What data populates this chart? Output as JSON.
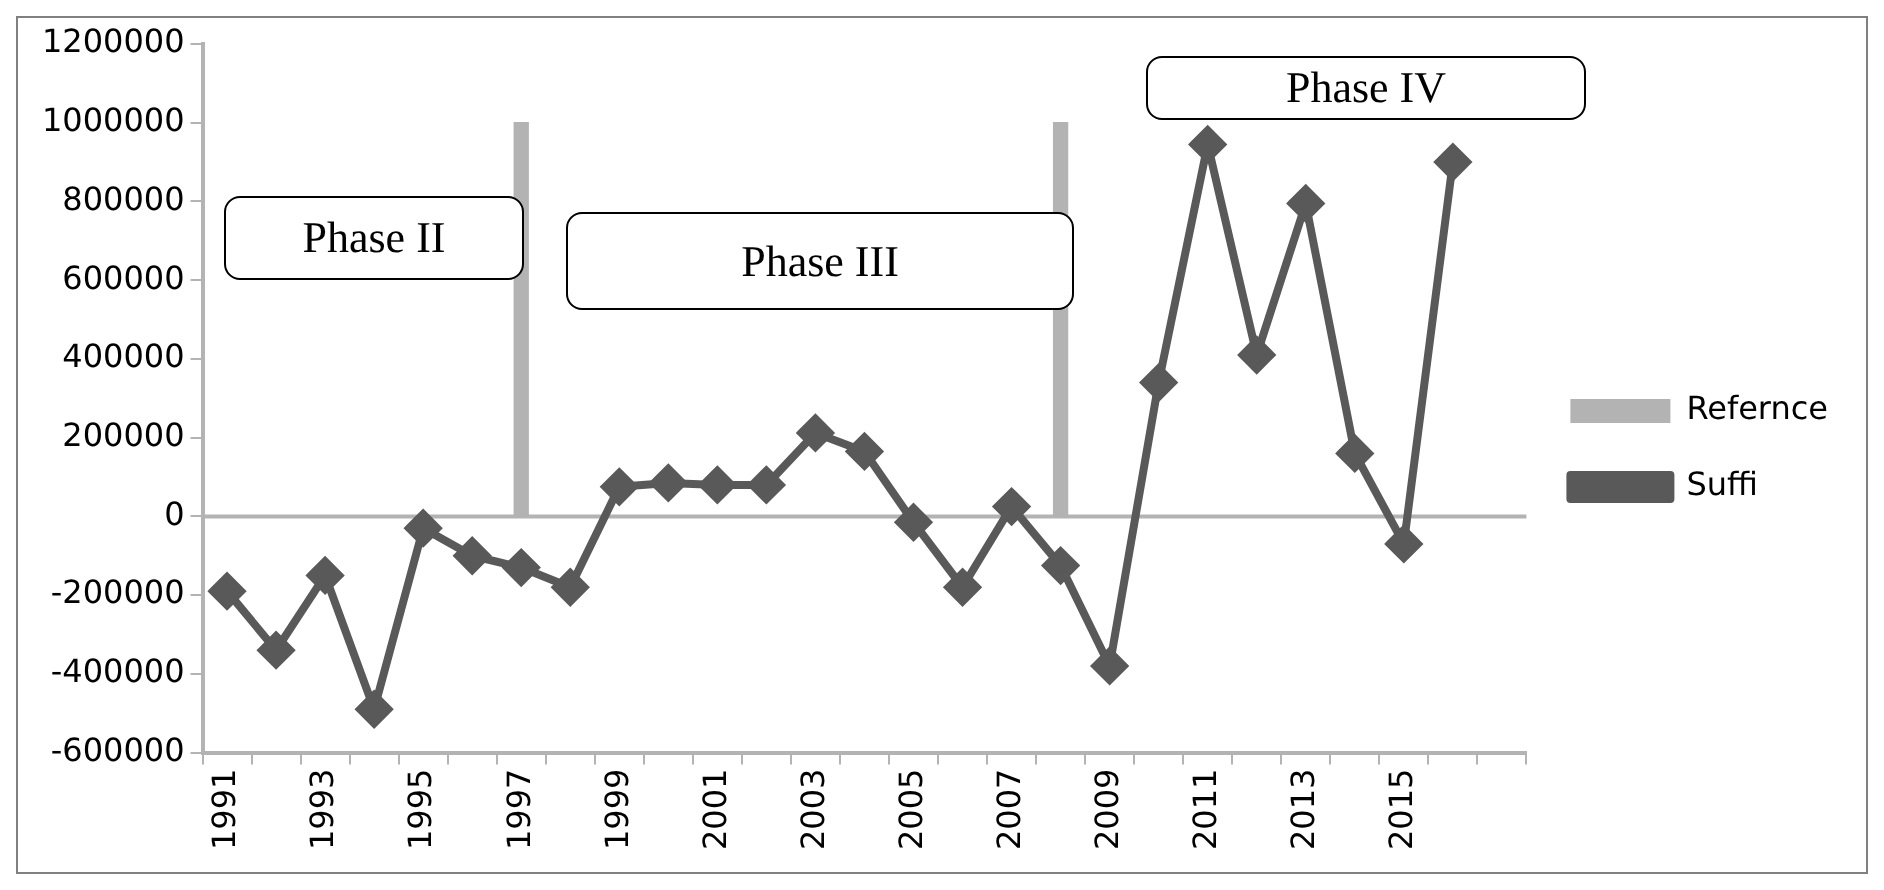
{
  "chart_data": {
    "type": "line",
    "categories": [
      "1991",
      null,
      "1993",
      null,
      "1995",
      null,
      "1997",
      null,
      "1999",
      null,
      "2001",
      null,
      "2003",
      null,
      "2005",
      null,
      "2007",
      null,
      "2009",
      null,
      "2011",
      null,
      "2013",
      null,
      "2015",
      null,
      null
    ],
    "series": [
      {
        "name": "Refernce",
        "type": "bar",
        "color": "#b3b3b3",
        "values": [
          null,
          null,
          null,
          null,
          null,
          null,
          1000000,
          null,
          null,
          null,
          null,
          null,
          null,
          null,
          null,
          null,
          null,
          1000000,
          null,
          null,
          null,
          null,
          null,
          null,
          null,
          null,
          null
        ]
      },
      {
        "name": "Suffi",
        "color": "#595959",
        "values": [
          -190000,
          -340000,
          -150000,
          -490000,
          -30000,
          -100000,
          -130000,
          -180000,
          75000,
          85000,
          80000,
          80000,
          212000,
          165000,
          -15000,
          -180000,
          25000,
          -125000,
          -380000,
          340000,
          945000,
          410000,
          795000,
          160000,
          -70000,
          900000,
          null
        ]
      }
    ],
    "ylim": [
      -600000,
      1200000
    ],
    "yticks": [
      -600000,
      -400000,
      -200000,
      0,
      200000,
      400000,
      600000,
      800000,
      1000000,
      1200000
    ],
    "grid": false,
    "legend": "right",
    "ref_lines": [
      {
        "axis": "y",
        "value": 0,
        "color": "#b3b3b3"
      }
    ],
    "marker": "diamond",
    "annotations": [
      "Phase II",
      "Phase III",
      "Phase IV"
    ]
  }
}
